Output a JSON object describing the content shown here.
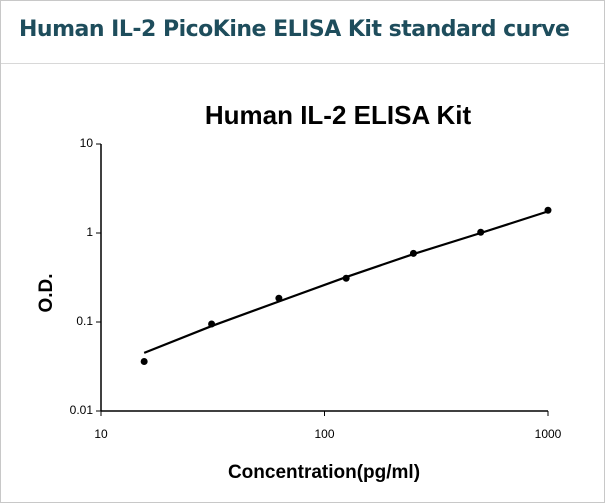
{
  "header": {
    "title": "Human IL-2 PicoKine ELISA Kit standard curve"
  },
  "chart_data": {
    "type": "scatter",
    "title": "Human IL-2 ELISA Kit",
    "x_label": "Concentration(pg/ml)",
    "y_label": "O.D.",
    "x": [
      15.6,
      31.25,
      62.5,
      125,
      250,
      500,
      1000
    ],
    "series": [
      {
        "color": "#000000",
        "style": "markers",
        "values": [
          0.036,
          0.095,
          0.185,
          0.31,
          0.59,
          1.02,
          1.8
        ]
      },
      {
        "color": "#000000",
        "style": "line",
        "values": [
          0.045,
          0.09,
          0.17,
          0.32,
          0.58,
          1.0,
          1.75
        ]
      }
    ],
    "xlim": [
      10,
      1000
    ],
    "ylim": [
      0.01,
      10
    ],
    "xticks": [
      10,
      100,
      1000
    ],
    "yticks": [
      0.01,
      0.1,
      1,
      10
    ],
    "xscale": "log",
    "yscale": "log"
  }
}
